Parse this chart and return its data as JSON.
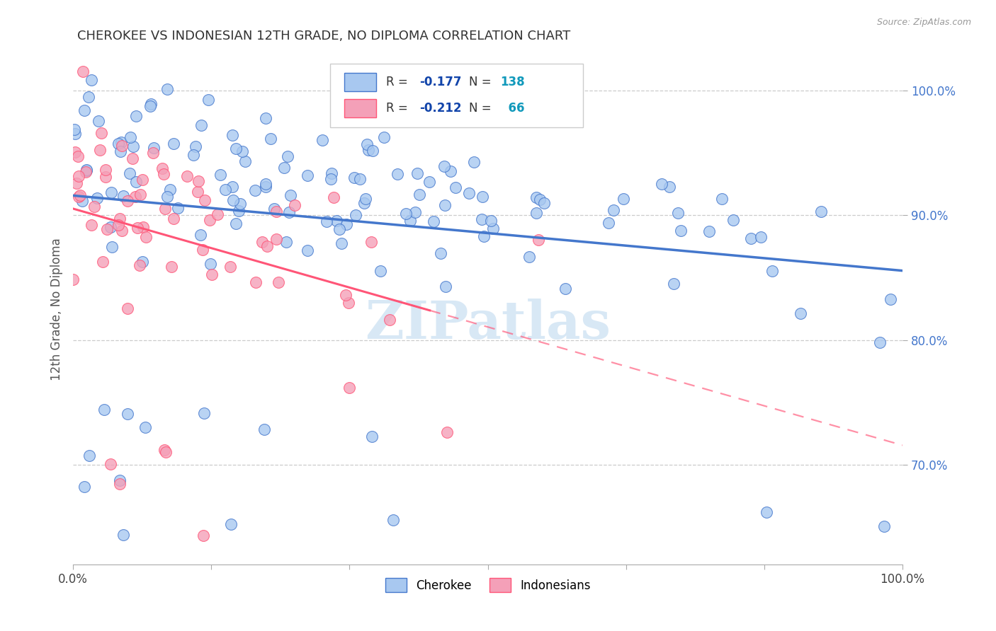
{
  "title": "CHEROKEE VS INDONESIAN 12TH GRADE, NO DIPLOMA CORRELATION CHART",
  "source": "Source: ZipAtlas.com",
  "ylabel": "12th Grade, No Diploma",
  "legend_label1": "Cherokee",
  "legend_label2": "Indonesians",
  "r1": -0.177,
  "n1": 138,
  "r2": -0.212,
  "n2": 66,
  "xlim": [
    0.0,
    1.0
  ],
  "ylim": [
    0.62,
    1.03
  ],
  "yticks": [
    0.7,
    0.8,
    0.9,
    1.0
  ],
  "ytick_labels": [
    "70.0%",
    "80.0%",
    "90.0%",
    "100.0%"
  ],
  "color_blue": "#A8C8F0",
  "color_pink": "#F4A0B8",
  "line_blue": "#4477CC",
  "line_pink": "#FF5577",
  "watermark": "ZIPatlas",
  "watermark_color": "#D8E8F5",
  "background": "#FFFFFF",
  "grid_color": "#CCCCCC",
  "title_color": "#333333",
  "axis_label_color": "#555555",
  "legend_r_color": "#1144AA",
  "legend_n_color": "#1199BB"
}
